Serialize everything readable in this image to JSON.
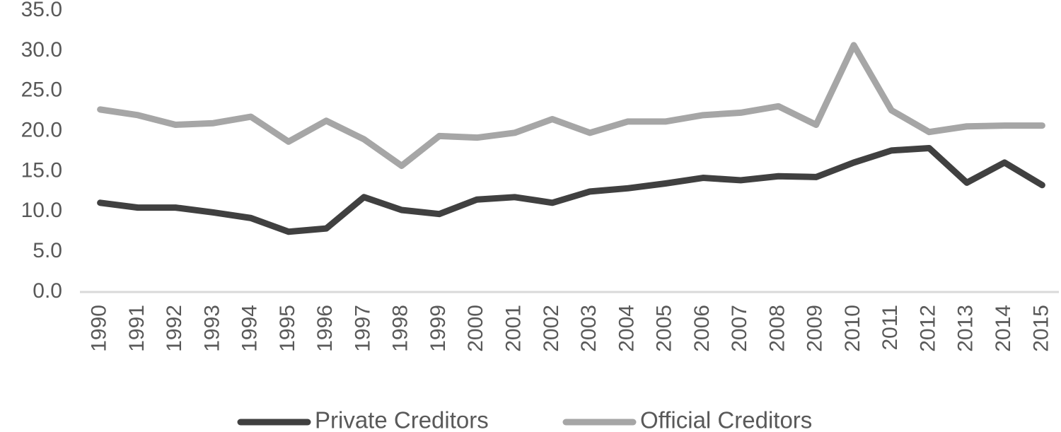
{
  "chart_data": {
    "type": "line",
    "categories": [
      "1990",
      "1991",
      "1992",
      "1993",
      "1994",
      "1995",
      "1996",
      "1997",
      "1998",
      "1999",
      "2000",
      "2001",
      "2002",
      "2003",
      "2004",
      "2005",
      "2006",
      "2007",
      "2008",
      "2009",
      "2010",
      "2011",
      "2012",
      "2013",
      "2014",
      "2015"
    ],
    "series": [
      {
        "name": "Private Creditors",
        "color": "#404040",
        "values": [
          11.1,
          10.5,
          10.5,
          9.9,
          9.2,
          7.5,
          7.9,
          11.8,
          10.2,
          9.7,
          11.5,
          11.8,
          11.1,
          12.5,
          12.9,
          13.5,
          14.2,
          13.9,
          14.4,
          14.3,
          16.1,
          17.6,
          17.9,
          13.6,
          16.1,
          13.3
        ]
      },
      {
        "name": "Official Creditors",
        "color": "#a6a6a6",
        "values": [
          22.7,
          22.0,
          20.8,
          21.0,
          21.8,
          18.7,
          21.3,
          19.0,
          15.7,
          19.4,
          19.2,
          19.8,
          21.5,
          19.8,
          21.2,
          21.2,
          22.0,
          22.3,
          23.1,
          20.8,
          30.7,
          22.6,
          19.9,
          20.6,
          20.7,
          20.7
        ]
      }
    ],
    "ylim": [
      0,
      35
    ],
    "yticks": [
      {
        "value": 0,
        "label": "0.0"
      },
      {
        "value": 5,
        "label": "5.0"
      },
      {
        "value": 10,
        "label": "10.0"
      },
      {
        "value": 15,
        "label": "15.0"
      },
      {
        "value": 20,
        "label": "20.0"
      },
      {
        "value": 25,
        "label": "25.0"
      },
      {
        "value": 30,
        "label": "30.0"
      },
      {
        "value": 35,
        "label": "35.0"
      }
    ],
    "grid": false,
    "legend": "bottom"
  }
}
